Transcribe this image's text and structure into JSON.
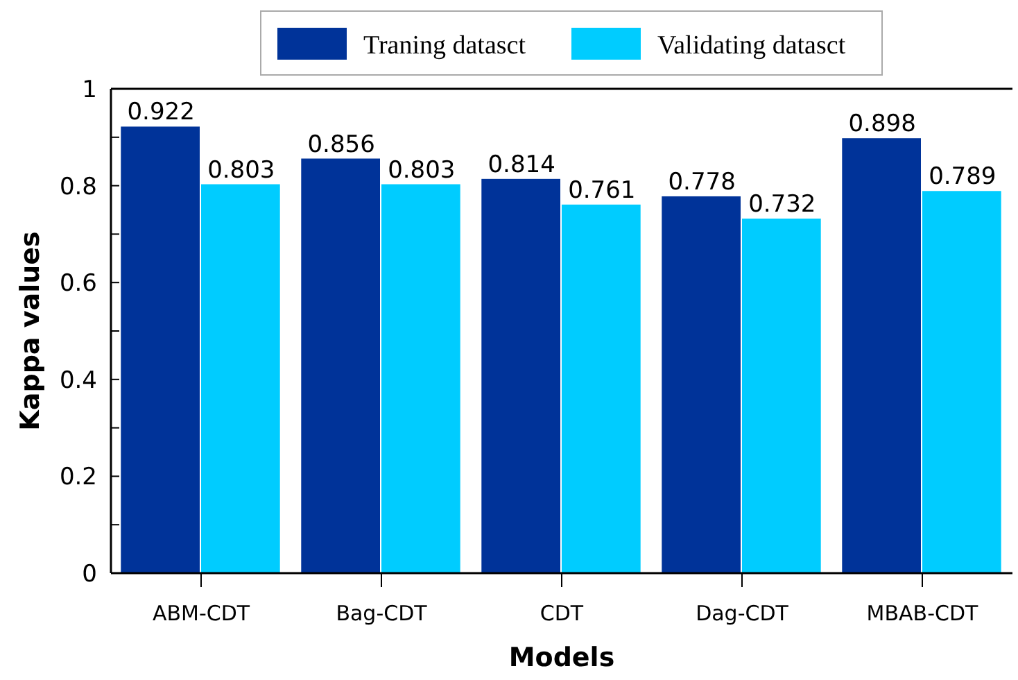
{
  "chart_data": {
    "type": "bar",
    "xlabel": "Models",
    "ylabel": "Kappa values",
    "categories": [
      "ABM-CDT",
      "Bag-CDT",
      "CDT",
      "Dag-CDT",
      "MBAB-CDT"
    ],
    "series": [
      {
        "name": "Traning datasct",
        "color": "#003399",
        "values": [
          0.922,
          0.856,
          0.814,
          0.778,
          0.898
        ]
      },
      {
        "name": "Validating datasct",
        "color": "#00ccff",
        "values": [
          0.803,
          0.803,
          0.761,
          0.732,
          0.789
        ]
      }
    ],
    "ylim": [
      0,
      1
    ],
    "yticks": [
      0,
      {
        "value": 0.1,
        "label": null
      },
      0.2,
      {
        "value": 0.3,
        "label": null
      },
      0.4,
      {
        "value": 0.5,
        "label": null
      },
      0.6,
      {
        "value": 0.7,
        "label": null
      },
      0.8,
      {
        "value": 0.9,
        "label": null
      },
      1
    ],
    "data_labels": true,
    "legend": "top",
    "grid": false
  }
}
